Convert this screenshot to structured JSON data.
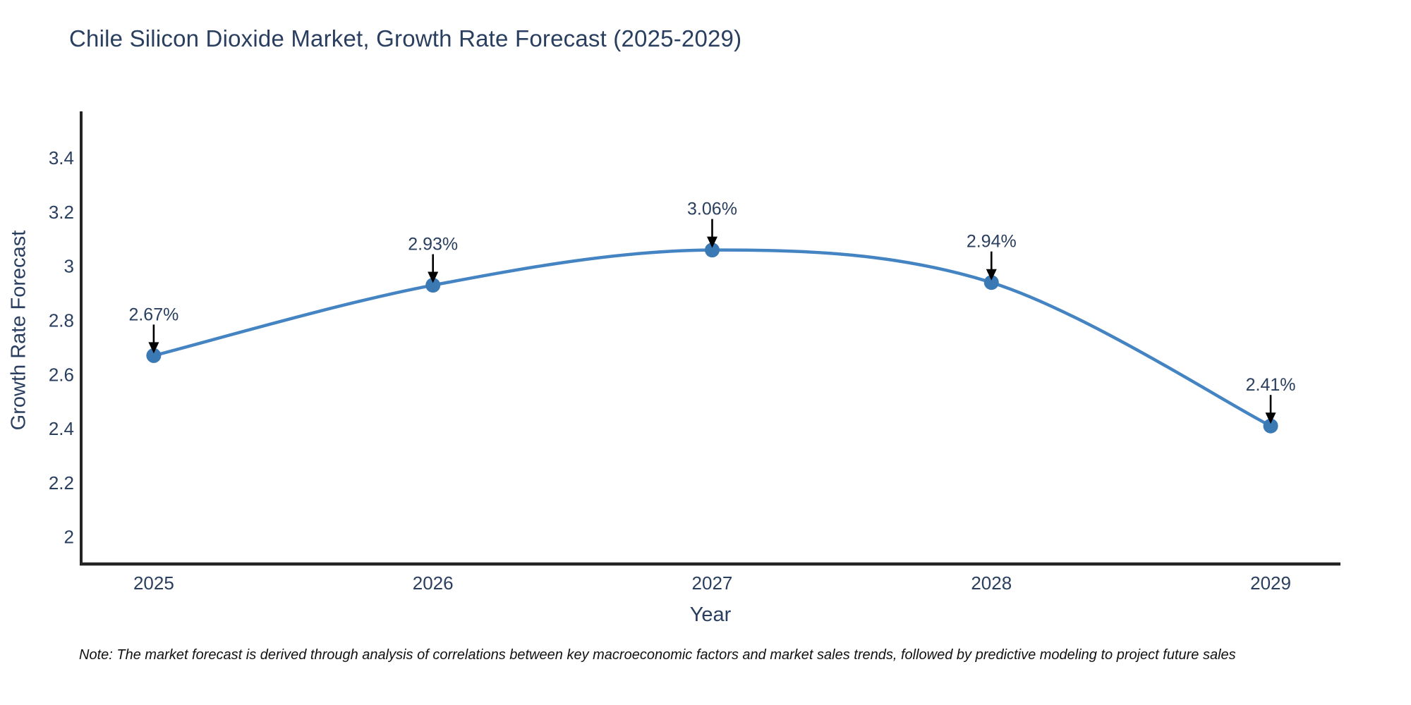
{
  "note": "Note: The market forecast is derived through analysis of correlations between key macroeconomic factors and market sales trends, followed by predictive modeling to project future sales",
  "chart_data": {
    "type": "line",
    "title": "Chile Silicon Dioxide Market, Growth Rate Forecast (2025-2029)",
    "xlabel": "Year",
    "ylabel": "Growth Rate Forecast",
    "x": [
      2025,
      2026,
      2027,
      2028,
      2029
    ],
    "series": [
      {
        "name": "Growth Rate Forecast",
        "values": [
          2.67,
          2.93,
          3.06,
          2.94,
          2.41
        ],
        "point_labels": [
          "2.67%",
          "2.93%",
          "3.06%",
          "2.94%",
          "2.41%"
        ]
      }
    ],
    "xticks": [
      "2025",
      "2026",
      "2027",
      "2028",
      "2029"
    ],
    "yticks": [
      "2",
      "2.2",
      "2.4",
      "2.6",
      "2.8",
      "3",
      "3.2",
      "3.4"
    ],
    "ytick_values": [
      2,
      2.2,
      2.4,
      2.6,
      2.8,
      3,
      3.2,
      3.4
    ],
    "xlim": [
      2024.74,
      2029.25
    ],
    "ylim": [
      1.9,
      3.58
    ],
    "grid": false,
    "legend_position": "none",
    "line_shape": "spline",
    "annotations_have_arrows": true,
    "colors": {
      "line": "#4584c2",
      "marker": "#3b79b5",
      "annotation_text": "#2a3f5f",
      "annotation_arrow": "#000000",
      "axis_line": "#242424",
      "tick_text": "#2a3f5f",
      "title_text": "#2a3f5f",
      "background": "#ffffff"
    }
  }
}
